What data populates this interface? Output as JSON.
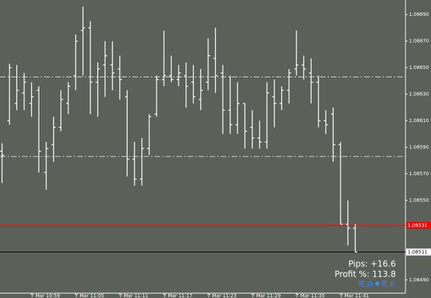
{
  "chart_data": {
    "type": "ohlc",
    "categories": [
      null,
      null,
      null,
      null,
      "7 Mar 10:59",
      null,
      null,
      null,
      null,
      null,
      "7 Mar 11:05",
      null,
      null,
      null,
      null,
      null,
      "7 Mar 11:11",
      null,
      null,
      null,
      null,
      null,
      "7 Mar 11:17",
      null,
      null,
      null,
      null,
      null,
      "7 Mar 11:23",
      null,
      null,
      null,
      null,
      null,
      "7 Mar 11:29",
      null,
      null,
      null,
      null,
      null,
      "7 Mar 11:35",
      null,
      null,
      null,
      null,
      null,
      "7 Mar 11:41",
      null,
      null
    ],
    "open": [
      1.08587,
      1.0861,
      1.08623,
      1.08631,
      1.08623,
      1.08633,
      1.08571,
      1.08592,
      1.08605,
      1.08623,
      1.08644,
      1.08678,
      1.0868,
      1.08639,
      1.08652,
      1.08652,
      1.08649,
      1.08628,
      1.08581,
      1.08566,
      1.08589,
      1.08615,
      1.08641,
      1.08644,
      1.08641,
      1.08644,
      1.08639,
      1.08626,
      1.08639,
      1.08657,
      1.08646,
      1.08618,
      1.08607,
      1.08623,
      1.08605,
      1.08597,
      1.08594,
      1.08628,
      1.08623,
      1.08633,
      1.08649,
      1.08652,
      1.08646,
      1.08639,
      1.0861,
      1.08615,
      1.08592,
      1.08532,
      1.08529
    ],
    "high": [
      1.08593,
      1.08653,
      1.08652,
      1.08646,
      1.08639,
      1.08636,
      1.08594,
      1.08613,
      1.08633,
      1.08639,
      1.08675,
      1.08696,
      1.08685,
      1.08654,
      1.0867,
      1.0867,
      1.08659,
      1.08633,
      1.08594,
      1.08597,
      1.08615,
      1.08644,
      1.08678,
      1.08659,
      1.08652,
      1.08654,
      1.08652,
      1.08649,
      1.08672,
      1.0868,
      1.08652,
      1.08644,
      1.08639,
      1.08623,
      1.08618,
      1.0861,
      1.08639,
      1.08641,
      1.08636,
      1.08649,
      1.08678,
      1.08659,
      1.08657,
      1.08644,
      1.08618,
      1.0862,
      1.08594,
      1.0855,
      1.08532
    ],
    "low": [
      1.08563,
      1.08607,
      1.08618,
      1.08618,
      1.08613,
      1.08571,
      1.08558,
      1.08579,
      1.08602,
      1.08615,
      1.08633,
      1.08644,
      1.08615,
      1.08613,
      1.08628,
      1.08633,
      1.08626,
      1.08568,
      1.08561,
      1.08561,
      1.08584,
      1.08613,
      1.08636,
      1.08639,
      1.08636,
      1.0862,
      1.08623,
      1.08618,
      1.08633,
      1.08631,
      1.086,
      1.086,
      1.086,
      1.08589,
      1.08589,
      1.08589,
      1.08589,
      1.08605,
      1.08618,
      1.08623,
      1.08644,
      1.08641,
      1.08623,
      1.08605,
      1.086,
      1.08579,
      1.08532,
      1.08516,
      1.08511
    ],
    "close": [
      1.08584,
      1.0865,
      1.08633,
      1.08639,
      1.08628,
      1.08587,
      1.08589,
      1.08605,
      1.08626,
      1.08636,
      1.0867,
      1.0868,
      1.08639,
      1.08649,
      1.08659,
      1.08646,
      1.08641,
      1.08581,
      1.08566,
      1.08589,
      1.08613,
      1.08641,
      1.08644,
      1.08641,
      1.08646,
      1.08636,
      1.08628,
      1.08633,
      1.08659,
      1.08644,
      1.08618,
      1.08607,
      1.08623,
      1.08602,
      1.08597,
      1.08594,
      1.08631,
      1.08623,
      1.08633,
      1.08646,
      1.08652,
      1.08649,
      1.08639,
      1.0861,
      1.08607,
      1.08592,
      1.08532,
      1.08529,
      1.08511
    ],
    "color": "#ffffff",
    "ylim": [
      1.0848,
      1.08701
    ],
    "yticks": [
      {
        "value": 1.0869,
        "label": "1.08690"
      },
      {
        "value": 1.0867,
        "label": "1.08670"
      },
      {
        "value": 1.0865,
        "label": "1.08650"
      },
      {
        "value": 1.0863,
        "label": "1.08630"
      },
      {
        "value": 1.0861,
        "label": "1.08610"
      },
      {
        "value": 1.0859,
        "label": "1.08590"
      },
      {
        "value": 1.0857,
        "label": "1.08570"
      },
      {
        "value": 1.0855,
        "label": "1.08550"
      },
      {
        "value": 1.0849,
        "label": "1.08490"
      }
    ],
    "hlines": [
      {
        "value": 1.08643,
        "color": "#d8d8d8"
      },
      {
        "value": 1.08583,
        "color": "#d8d8d8"
      }
    ],
    "price_markers": [
      {
        "value": 1.08531,
        "label": "1.08531",
        "color": "#ff0000"
      },
      {
        "value": 1.08511,
        "label": "1.08511",
        "color": "#000000"
      }
    ],
    "annotations": [
      "Pips: +16.6",
      "Profit %: 113.8",
      "♏♎♦♏♌"
    ]
  }
}
